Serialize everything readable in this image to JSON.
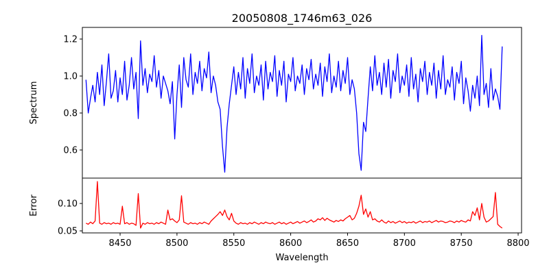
{
  "chart_data": [
    {
      "type": "line",
      "title": "20050808_1746m63_026",
      "xlabel": "",
      "ylabel": "Spectrum",
      "xlim": [
        8416.8,
        8803
      ],
      "ylim": [
        0.448,
        1.263
      ],
      "yticks": [
        0.6,
        0.8,
        1.0,
        1.2
      ],
      "ytick_labels": [
        "0.6",
        "0.8",
        "1.0",
        "1.2"
      ],
      "color": "#0000ff",
      "x_start": 8420,
      "x_step": 2,
      "values": [
        0.98,
        0.8,
        0.88,
        0.95,
        0.86,
        1.02,
        0.9,
        1.06,
        0.84,
        0.97,
        1.12,
        0.88,
        0.92,
        1.03,
        0.86,
        0.99,
        0.9,
        1.08,
        0.87,
        0.95,
        1.1,
        0.93,
        1.02,
        0.77,
        1.19,
        0.95,
        1.04,
        0.91,
        1.01,
        0.97,
        1.11,
        0.94,
        1.03,
        0.88,
        1.0,
        0.96,
        0.92,
        0.85,
        0.97,
        0.66,
        0.9,
        1.06,
        0.83,
        1.1,
        0.98,
        0.94,
        1.12,
        0.9,
        1.02,
        0.96,
        1.08,
        0.92,
        1.04,
        0.99,
        1.13,
        0.91,
        1.0,
        0.95,
        0.86,
        0.82,
        0.62,
        0.48,
        0.72,
        0.85,
        0.95,
        1.05,
        0.9,
        1.02,
        0.93,
        1.1,
        0.88,
        1.04,
        0.96,
        1.12,
        0.91,
        1.0,
        0.95,
        1.06,
        0.87,
        1.08,
        0.93,
        1.02,
        0.97,
        1.11,
        0.89,
        1.03,
        0.95,
        1.08,
        0.86,
        1.01,
        0.97,
        1.1,
        0.92,
        1.0,
        0.96,
        1.06,
        0.9,
        1.04,
        0.98,
        1.09,
        0.93,
        1.01,
        0.95,
        1.07,
        0.89,
        1.05,
        0.97,
        1.12,
        0.91,
        1.0,
        0.94,
        1.08,
        0.92,
        1.03,
        0.96,
        1.1,
        0.9,
        0.98,
        0.93,
        0.8,
        0.58,
        0.49,
        0.75,
        0.7,
        0.88,
        1.05,
        0.92,
        1.11,
        0.95,
        1.02,
        0.9,
        1.07,
        0.94,
        1.09,
        0.88,
        1.03,
        0.97,
        1.12,
        0.91,
        1.0,
        0.95,
        1.06,
        0.89,
        1.1,
        0.93,
        1.01,
        0.86,
        1.04,
        0.97,
        1.08,
        0.9,
        1.02,
        0.95,
        1.07,
        0.88,
        1.03,
        0.93,
        1.11,
        0.9,
        0.98,
        0.94,
        1.05,
        0.87,
        1.02,
        0.96,
        1.08,
        0.85,
        0.99,
        0.92,
        0.81,
        0.95,
        0.88,
        1.0,
        0.84,
        1.22,
        0.9,
        0.96,
        0.83,
        1.04,
        0.87,
        0.93,
        0.89,
        0.82,
        1.16
      ]
    },
    {
      "type": "line",
      "xlabel": "Wavelength",
      "ylabel": "Error",
      "xlim": [
        8416.8,
        8803
      ],
      "ylim": [
        0.0463,
        0.1463
      ],
      "yticks": [
        0.05,
        0.1
      ],
      "ytick_labels": [
        "0.05",
        "0.10"
      ],
      "xticks": [
        8450,
        8500,
        8550,
        8600,
        8650,
        8700,
        8750,
        8800
      ],
      "xtick_labels": [
        "8450",
        "8500",
        "8550",
        "8600",
        "8650",
        "8700",
        "8750",
        "8800"
      ],
      "color": "#ff0000",
      "x_start": 8420,
      "x_step": 2,
      "values": [
        0.064,
        0.062,
        0.066,
        0.063,
        0.068,
        0.14,
        0.064,
        0.062,
        0.065,
        0.063,
        0.064,
        0.062,
        0.065,
        0.063,
        0.064,
        0.062,
        0.095,
        0.063,
        0.065,
        0.062,
        0.064,
        0.063,
        0.06,
        0.118,
        0.055,
        0.064,
        0.062,
        0.065,
        0.063,
        0.064,
        0.062,
        0.065,
        0.063,
        0.066,
        0.064,
        0.062,
        0.088,
        0.07,
        0.072,
        0.068,
        0.065,
        0.07,
        0.114,
        0.066,
        0.064,
        0.062,
        0.065,
        0.063,
        0.064,
        0.062,
        0.065,
        0.063,
        0.066,
        0.064,
        0.062,
        0.068,
        0.072,
        0.076,
        0.08,
        0.085,
        0.078,
        0.088,
        0.076,
        0.07,
        0.082,
        0.068,
        0.064,
        0.062,
        0.065,
        0.063,
        0.064,
        0.062,
        0.065,
        0.063,
        0.066,
        0.064,
        0.062,
        0.065,
        0.063,
        0.066,
        0.064,
        0.063,
        0.065,
        0.062,
        0.064,
        0.066,
        0.063,
        0.065,
        0.062,
        0.064,
        0.066,
        0.063,
        0.065,
        0.067,
        0.064,
        0.066,
        0.068,
        0.065,
        0.067,
        0.07,
        0.066,
        0.068,
        0.072,
        0.07,
        0.074,
        0.069,
        0.073,
        0.07,
        0.068,
        0.066,
        0.069,
        0.067,
        0.07,
        0.068,
        0.072,
        0.075,
        0.078,
        0.07,
        0.073,
        0.082,
        0.095,
        0.115,
        0.08,
        0.09,
        0.075,
        0.085,
        0.07,
        0.072,
        0.068,
        0.066,
        0.07,
        0.066,
        0.064,
        0.068,
        0.065,
        0.067,
        0.064,
        0.066,
        0.068,
        0.065,
        0.067,
        0.064,
        0.066,
        0.065,
        0.067,
        0.064,
        0.066,
        0.068,
        0.065,
        0.067,
        0.066,
        0.068,
        0.065,
        0.067,
        0.069,
        0.066,
        0.068,
        0.067,
        0.065,
        0.066,
        0.068,
        0.067,
        0.065,
        0.068,
        0.066,
        0.069,
        0.067,
        0.066,
        0.07,
        0.068,
        0.085,
        0.078,
        0.092,
        0.07,
        0.1,
        0.075,
        0.066,
        0.068,
        0.072,
        0.076,
        0.12,
        0.062,
        0.058,
        0.055
      ]
    }
  ]
}
